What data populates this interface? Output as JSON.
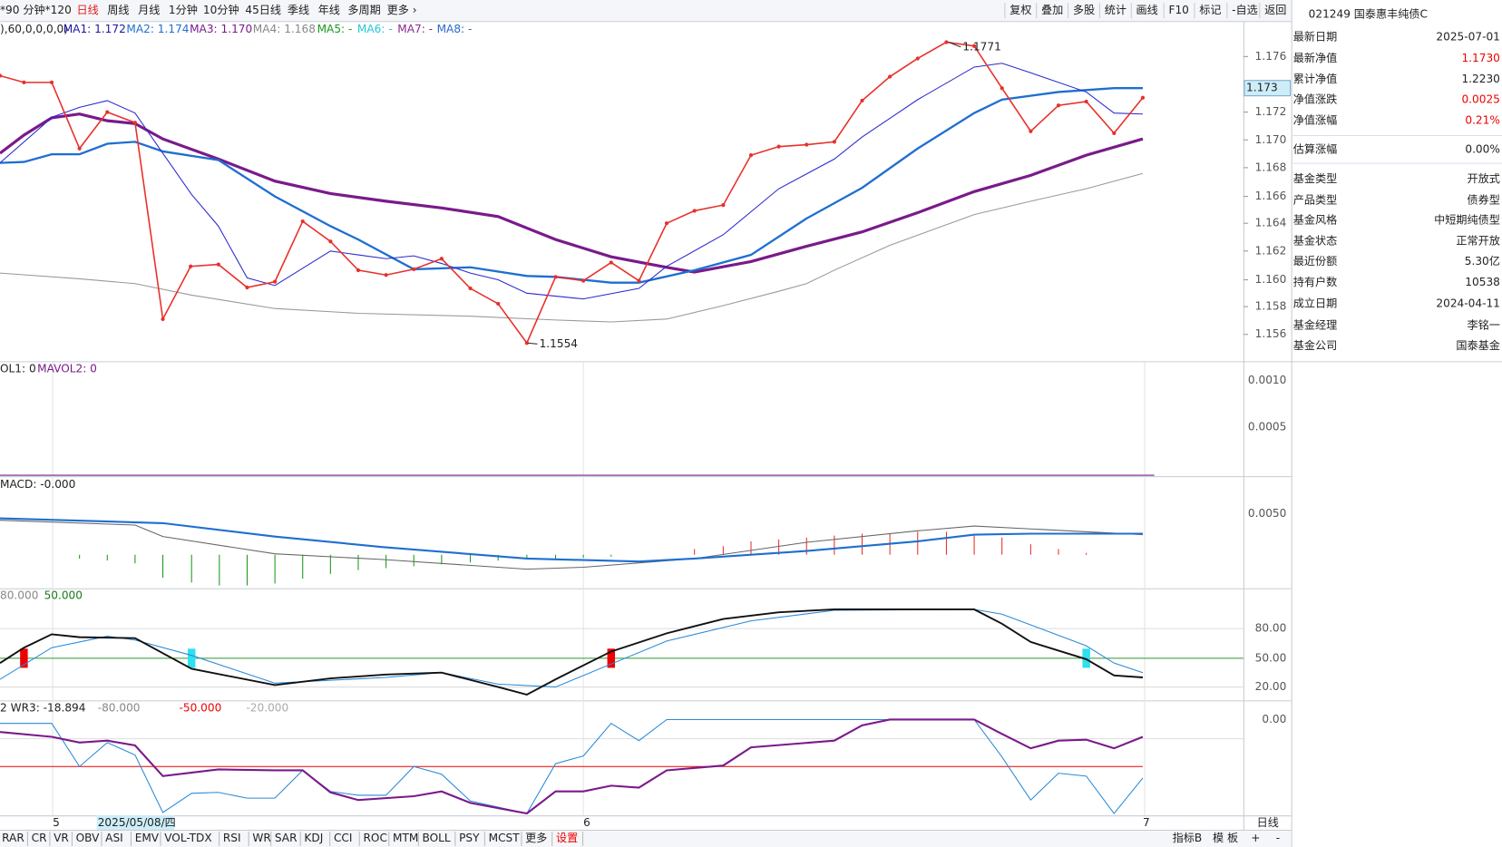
{
  "toolbar": {
    "periods": [
      "*90",
      "分钟*120",
      "日线",
      "周线",
      "月线",
      "1分钟",
      "10分钟",
      "45日线",
      "季线",
      "年线",
      "多周期",
      "更多 ›"
    ],
    "buttons": [
      "复权",
      "叠加",
      "多股",
      "统计",
      "画线",
      "F10",
      "标记",
      "-自选",
      "返回"
    ]
  },
  "main_chart": {
    "legend": [
      "),60,0,0,0,0)",
      "MA1: 1.172",
      "MA2: 1.174",
      "MA3: 1.170",
      "MA4: 1.168",
      "MA5: -",
      "MA6: -",
      "MA7: -",
      "MA8: -"
    ],
    "yticks": [
      "1.176",
      "1.172",
      "1.170",
      "1.168",
      "1.166",
      "1.164",
      "1.162",
      "1.160",
      "1.158",
      "1.156"
    ],
    "price_tag": "1.173",
    "high_label": "1.1771",
    "low_label": "1.1554"
  },
  "volume_panel": {
    "legend": [
      "OL1: 0",
      "MAVOL2: 0"
    ],
    "yticks": [
      "0.0010",
      "0.0005"
    ]
  },
  "macd_panel": {
    "legend": "MACD: -0.000",
    "yticks": [
      "0.0050"
    ]
  },
  "kdj_panel": {
    "legend": [
      "80.000",
      "50.000"
    ],
    "yticks": [
      "80.00",
      "50.00",
      "20.00"
    ]
  },
  "wr_panel": {
    "legend": [
      "2",
      "WR3: -18.894",
      "-80.000",
      "-50.000",
      "-20.000"
    ],
    "yticks": [
      "0.00"
    ]
  },
  "date_axis": {
    "labels": [
      "5",
      "2025/05/08/四",
      "6",
      "7"
    ],
    "period": "日线"
  },
  "info_panel": {
    "title": "021249 国泰惠丰纯债C",
    "rows": [
      [
        "最新日期",
        "2025-07-01"
      ],
      [
        "最新净值",
        "1.1730"
      ],
      [
        "累计净值",
        "1.2230"
      ],
      [
        "净值涨跌",
        "0.0025"
      ],
      [
        "净值涨幅",
        "0.21%"
      ],
      [
        "估算涨幅",
        "0.00%"
      ],
      [
        "基金类型",
        "开放式"
      ],
      [
        "产品类型",
        "债券型"
      ],
      [
        "基金风格",
        "中短期纯债型"
      ],
      [
        "基金状态",
        "正常开放"
      ],
      [
        "最近份额",
        "5.30亿"
      ],
      [
        "持有户数",
        "10538"
      ],
      [
        "成立日期",
        "2024-04-11"
      ],
      [
        "基金经理",
        "李铭一"
      ],
      [
        "基金公司",
        "国泰基金"
      ]
    ]
  },
  "bottom_tabs": {
    "indicators": [
      "RAR",
      "CR",
      "VR",
      "OBV",
      "ASI",
      "EMV",
      "VOL-TDX",
      "RSI",
      "WR",
      "SAR",
      "KDJ",
      "CCI",
      "ROC",
      "MTM",
      "BOLL",
      "PSY",
      "MCST",
      "更多",
      "设置"
    ],
    "right": [
      "指标B",
      "模 板",
      "+",
      "-"
    ]
  }
}
